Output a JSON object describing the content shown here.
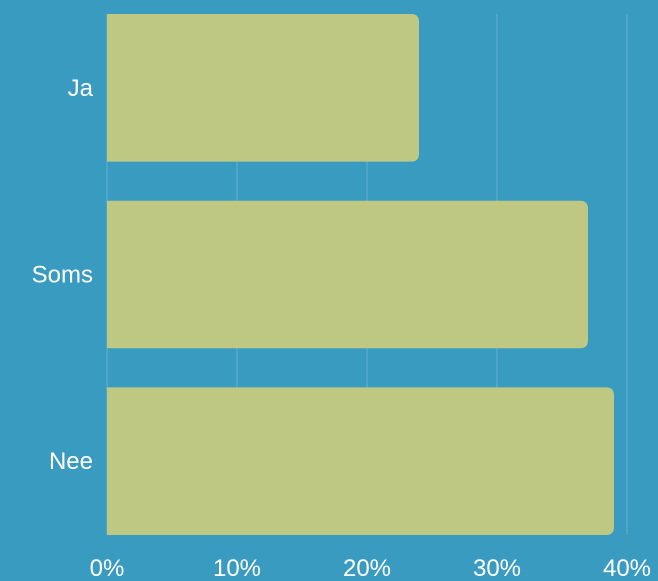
{
  "chart_data": {
    "type": "bar",
    "orientation": "horizontal",
    "categories": [
      "Ja",
      "Soms",
      "Nee"
    ],
    "values": [
      24,
      37,
      39
    ],
    "xlim": [
      0,
      40
    ],
    "xticks": [
      0,
      10,
      20,
      30,
      40
    ],
    "xtick_labels": [
      "0%",
      "10%",
      "20%",
      "30%",
      "40%"
    ],
    "grid": true,
    "colors": {
      "background": "#3a9bc1",
      "bar": "#bec882",
      "grid": "#5eb0d0",
      "text": "#ffffff"
    }
  }
}
